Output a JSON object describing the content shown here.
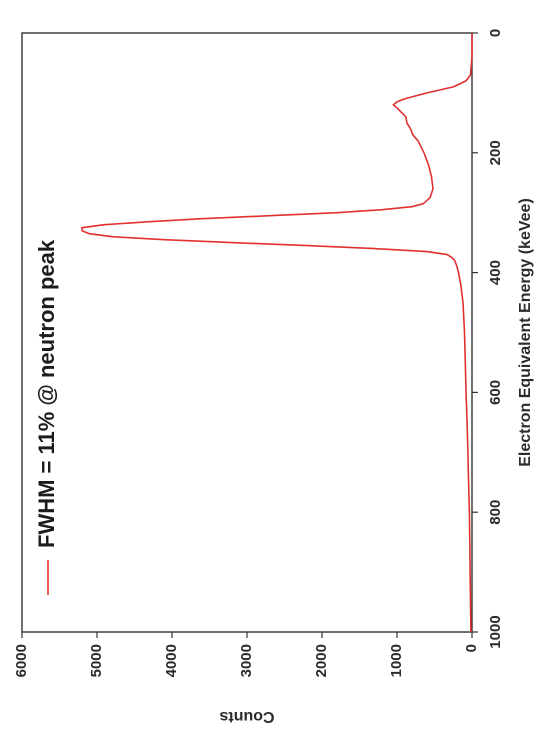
{
  "chart_data": {
    "type": "line",
    "orientation": "rotated-90-clockwise",
    "title": "",
    "xlabel": "Electron Equivalent Energy (keVee)",
    "ylabel": "Counts",
    "xlim": [
      0,
      1000
    ],
    "ylim": [
      0,
      6000
    ],
    "x_ticks": [
      0,
      200,
      400,
      600,
      800,
      1000
    ],
    "y_ticks": [
      0,
      1000,
      2000,
      3000,
      4000,
      5000,
      6000
    ],
    "grid": false,
    "legend_position": "top-left",
    "series": [
      {
        "name": "FWHM = 11% @ neutron peak",
        "color": "#e03030",
        "x": [
          0,
          40,
          70,
          80,
          90,
          100,
          110,
          115,
          120,
          125,
          130,
          140,
          150,
          160,
          170,
          180,
          200,
          220,
          240,
          260,
          275,
          285,
          290,
          295,
          300,
          305,
          310,
          315,
          320,
          325,
          330,
          335,
          340,
          345,
          350,
          355,
          360,
          365,
          370,
          375,
          380,
          390,
          400,
          420,
          450,
          500,
          550,
          600,
          650,
          700,
          750,
          800,
          850,
          900,
          950,
          1000
        ],
        "y": [
          0,
          0,
          20,
          80,
          250,
          600,
          900,
          1000,
          1050,
          1000,
          960,
          880,
          870,
          820,
          790,
          720,
          640,
          580,
          540,
          520,
          560,
          650,
          800,
          1200,
          1800,
          2700,
          3600,
          4300,
          4900,
          5200,
          5200,
          5100,
          4800,
          4100,
          3200,
          2200,
          1300,
          600,
          330,
          270,
          230,
          200,
          180,
          150,
          120,
          100,
          90,
          80,
          65,
          55,
          45,
          35,
          30,
          25,
          20,
          15
        ]
      }
    ]
  }
}
